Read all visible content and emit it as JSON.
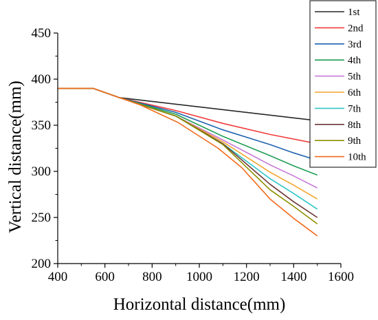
{
  "chart_data": {
    "type": "line",
    "xlabel": "Horizontal distance(mm)",
    "ylabel": "Vertical distance(mm)",
    "xlim": [
      400,
      1600
    ],
    "ylim": [
      200,
      450
    ],
    "xticks": [
      400,
      600,
      800,
      1000,
      1200,
      1400,
      1600
    ],
    "yticks": [
      200,
      250,
      300,
      350,
      400,
      450
    ],
    "legend_position": "top-right",
    "grid": false,
    "series": [
      {
        "name": "1st",
        "color": "#262626",
        "points": [
          [
            400,
            390
          ],
          [
            550,
            390
          ],
          [
            660,
            380
          ],
          [
            1500,
            355
          ]
        ]
      },
      {
        "name": "2nd",
        "color": "#f03b3b",
        "points": [
          [
            400,
            390
          ],
          [
            550,
            390
          ],
          [
            660,
            380
          ],
          [
            900,
            366
          ],
          [
            1100,
            352
          ],
          [
            1300,
            340
          ],
          [
            1500,
            330
          ]
        ]
      },
      {
        "name": "3rd",
        "color": "#1e63b0",
        "points": [
          [
            400,
            390
          ],
          [
            550,
            390
          ],
          [
            660,
            380
          ],
          [
            900,
            364
          ],
          [
            1100,
            345
          ],
          [
            1300,
            329
          ],
          [
            1400,
            320
          ],
          [
            1500,
            312
          ]
        ]
      },
      {
        "name": "4th",
        "color": "#1f9e55",
        "points": [
          [
            400,
            390
          ],
          [
            550,
            390
          ],
          [
            660,
            380
          ],
          [
            900,
            362
          ],
          [
            1100,
            338
          ],
          [
            1300,
            317
          ],
          [
            1400,
            306
          ],
          [
            1500,
            296
          ]
        ]
      },
      {
        "name": "5th",
        "color": "#c77bd8",
        "points": [
          [
            400,
            390
          ],
          [
            550,
            390
          ],
          [
            660,
            380
          ],
          [
            900,
            360
          ],
          [
            1100,
            334
          ],
          [
            1300,
            307
          ],
          [
            1400,
            295
          ],
          [
            1500,
            282
          ]
        ]
      },
      {
        "name": "6th",
        "color": "#f4a42c",
        "points": [
          [
            400,
            390
          ],
          [
            550,
            390
          ],
          [
            660,
            380
          ],
          [
            900,
            360
          ],
          [
            1100,
            332
          ],
          [
            1300,
            299
          ],
          [
            1400,
            285
          ],
          [
            1500,
            270
          ]
        ]
      },
      {
        "name": "7th",
        "color": "#30c6c6",
        "points": [
          [
            400,
            390
          ],
          [
            550,
            390
          ],
          [
            660,
            380
          ],
          [
            900,
            360
          ],
          [
            1100,
            330
          ],
          [
            1300,
            292
          ],
          [
            1400,
            276
          ],
          [
            1500,
            259
          ]
        ]
      },
      {
        "name": "8th",
        "color": "#6b3535",
        "points": [
          [
            400,
            390
          ],
          [
            550,
            390
          ],
          [
            660,
            380
          ],
          [
            900,
            360
          ],
          [
            1100,
            330
          ],
          [
            1300,
            286
          ],
          [
            1400,
            267
          ],
          [
            1500,
            250
          ]
        ]
      },
      {
        "name": "9th",
        "color": "#8d8d00",
        "points": [
          [
            400,
            390
          ],
          [
            550,
            390
          ],
          [
            660,
            380
          ],
          [
            900,
            360
          ],
          [
            1100,
            329
          ],
          [
            1300,
            280
          ],
          [
            1400,
            262
          ],
          [
            1500,
            243
          ]
        ]
      },
      {
        "name": "10th",
        "color": "#f26a1b",
        "points": [
          [
            400,
            390
          ],
          [
            550,
            390
          ],
          [
            660,
            380
          ],
          [
            750,
            372
          ],
          [
            910,
            353
          ],
          [
            1080,
            325
          ],
          [
            1180,
            304
          ],
          [
            1300,
            270
          ],
          [
            1400,
            249
          ],
          [
            1500,
            230
          ]
        ]
      }
    ]
  }
}
